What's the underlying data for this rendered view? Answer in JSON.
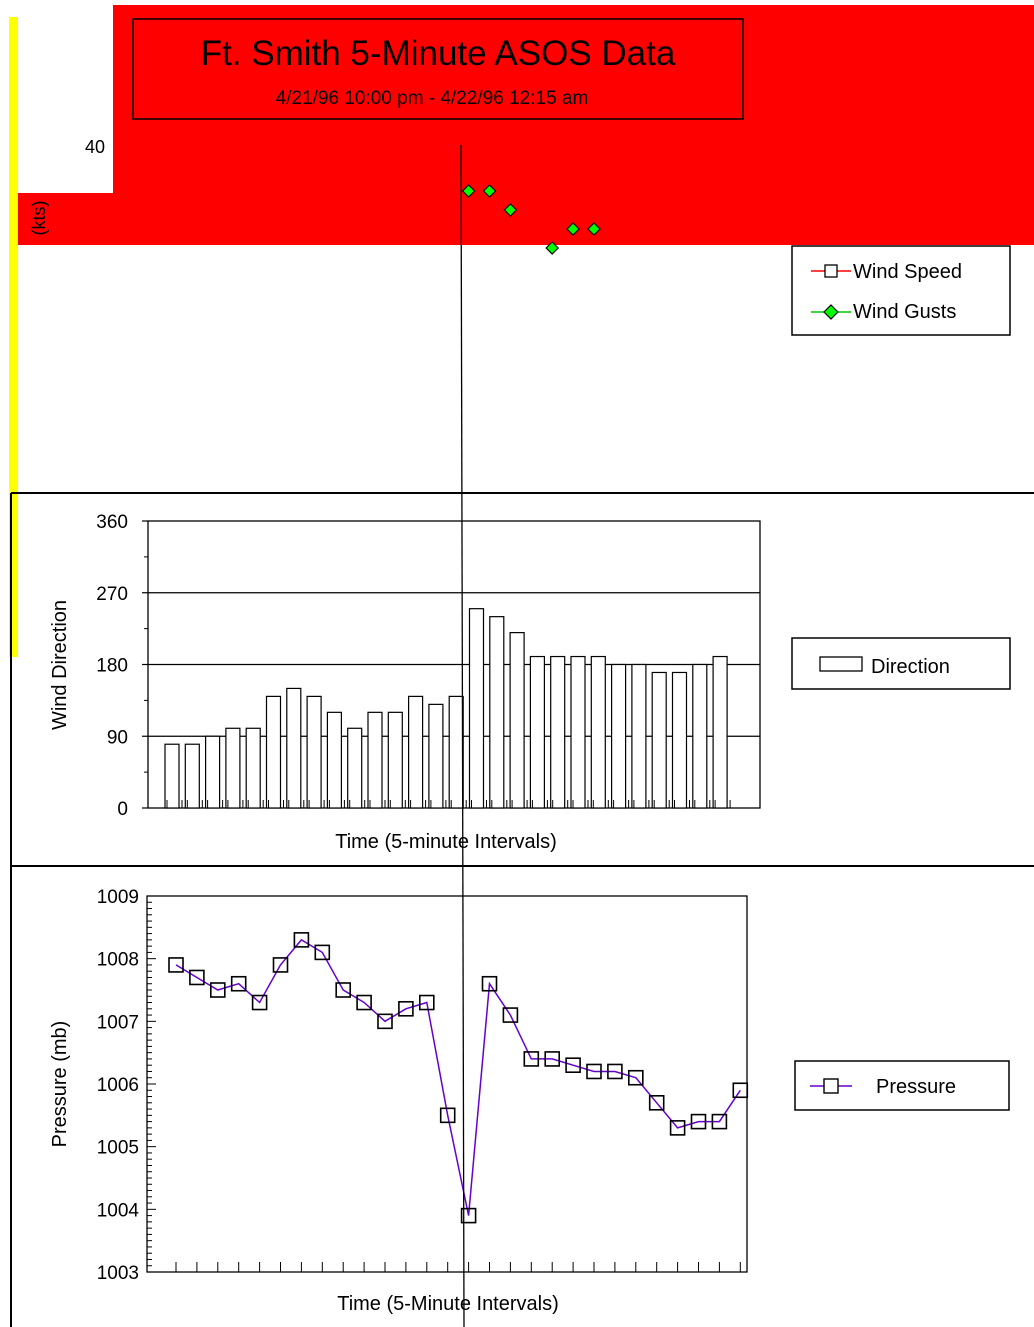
{
  "title": "Ft. Smith 5-Minute ASOS Data",
  "subtitle": "4/21/96 10:00 pm - 4/22/96 12:15 am",
  "colors": {
    "header_band": "#ff0000",
    "side_accent": "#ffff00",
    "gust_marker": "#00ff00",
    "speed_line": "#ff0000",
    "pressure_line": "#6600cc"
  },
  "chart_data": [
    {
      "type": "scatter",
      "panel": "wind",
      "ylabel": "(kts)",
      "visible_tick_labels": [
        "40"
      ],
      "legend": {
        "placement": "right",
        "entries": [
          "Wind Speed",
          "Wind Gusts"
        ]
      },
      "series": [
        {
          "name": "Wind Gusts",
          "x": [
            15,
            16,
            17,
            19,
            20,
            21
          ],
          "values": [
            38,
            38,
            37,
            35,
            36,
            36
          ]
        }
      ]
    },
    {
      "type": "bar",
      "panel": "direction",
      "xlabel": "Time (5-minute Intervals)",
      "ylabel": "Wind Direction",
      "ylim": [
        0,
        360
      ],
      "yticks": [
        "0",
        "90",
        "180",
        "270",
        "360"
      ],
      "grid": true,
      "legend": {
        "placement": "right",
        "entries": [
          "Direction"
        ]
      },
      "series": [
        {
          "name": "Direction",
          "values": [
            80,
            80,
            90,
            100,
            100,
            140,
            150,
            140,
            120,
            100,
            120,
            120,
            140,
            130,
            140,
            250,
            240,
            220,
            190,
            190,
            190,
            190,
            180,
            180,
            170,
            170,
            180,
            190
          ]
        }
      ]
    },
    {
      "type": "line",
      "panel": "pressure",
      "xlabel": "Time (5-Minute Intervals)",
      "ylabel": "Pressure (mb)",
      "ylim": [
        1003,
        1009
      ],
      "yticks": [
        "1003",
        "1004",
        "1005",
        "1006",
        "1007",
        "1008",
        "1009"
      ],
      "legend": {
        "placement": "right",
        "entries": [
          "Pressure"
        ]
      },
      "series": [
        {
          "name": "Pressure",
          "values": [
            1007.9,
            1007.7,
            1007.5,
            1007.6,
            1007.3,
            1007.9,
            1008.3,
            1008.1,
            1007.5,
            1007.3,
            1007.0,
            1007.2,
            1007.3,
            1005.5,
            1003.9,
            1007.6,
            1007.1,
            1006.4,
            1006.4,
            1006.3,
            1006.2,
            1006.2,
            1006.1,
            1005.7,
            1005.3,
            1005.4,
            1005.4,
            1005.9
          ]
        }
      ]
    }
  ]
}
